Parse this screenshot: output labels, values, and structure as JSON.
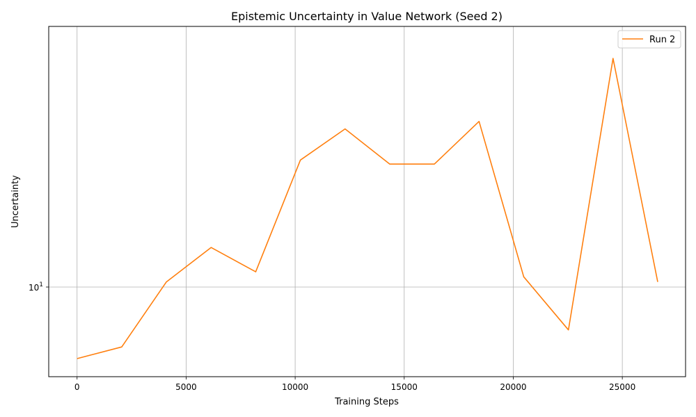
{
  "chart_data": {
    "type": "line",
    "title": "Epistemic Uncertainty in Value Network (Seed 2)",
    "xlabel": "Training Steps",
    "ylabel": "Uncertainty",
    "yscale": "log",
    "xlim": [
      -1300,
      27900
    ],
    "ylim": [
      8.4,
      16.6
    ],
    "xticks": [
      0,
      5000,
      10000,
      15000,
      20000,
      25000
    ],
    "xtick_labels": [
      "0",
      "5000",
      "10000",
      "15000",
      "20000",
      "25000"
    ],
    "yticks": [
      10
    ],
    "ytick_base": "10",
    "ytick_exp": "1",
    "grid": true,
    "legend": "top-right",
    "series": [
      {
        "name": "Run 2",
        "color": "#ff7f0e",
        "x": [
          0,
          2048,
          4096,
          6144,
          8192,
          10240,
          12288,
          14336,
          16384,
          18432,
          20480,
          22528,
          24576,
          26624
        ],
        "y": [
          8.7,
          8.9,
          10.1,
          10.8,
          10.3,
          12.8,
          13.6,
          12.7,
          12.7,
          13.8,
          10.2,
          9.2,
          15.6,
          10.1
        ]
      }
    ]
  }
}
